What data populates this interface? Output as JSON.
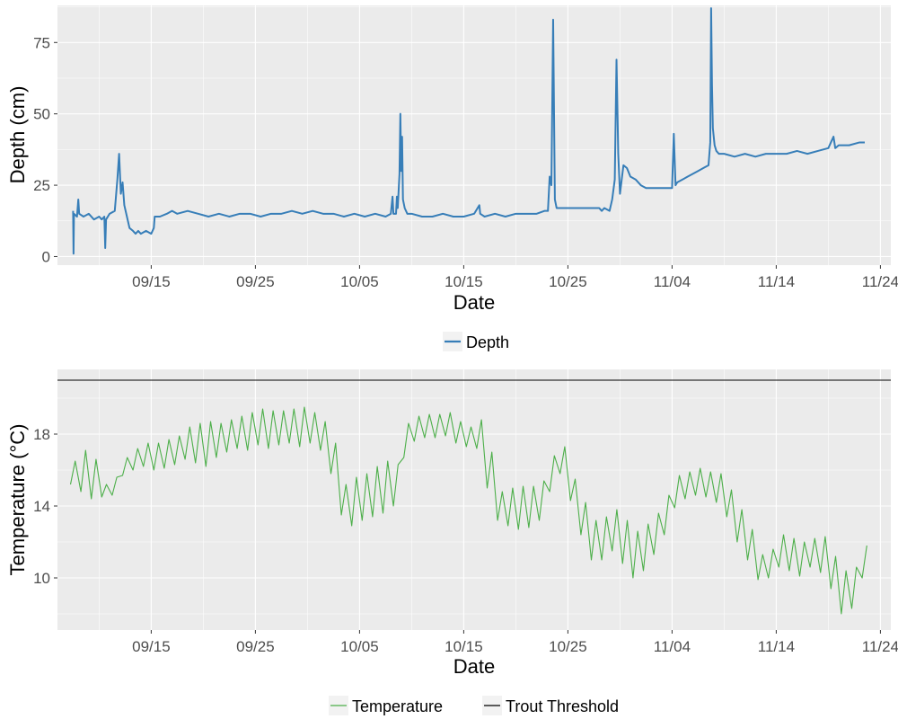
{
  "chart_data": [
    {
      "type": "line",
      "xlabel": "Date",
      "ylabel": "Depth (cm)",
      "x_tick_labels": [
        "09/15",
        "09/25",
        "10/05",
        "10/15",
        "10/25",
        "11/04",
        "11/14",
        "11/24"
      ],
      "x_tick_dates": [
        "09/15",
        "09/25",
        "10/05",
        "10/15",
        "10/25",
        "11/04",
        "11/14",
        "11/24"
      ],
      "xlim": [
        "09/06",
        "11/25"
      ],
      "y_ticks": [
        0,
        25,
        50,
        75
      ],
      "ylim": [
        -3,
        88
      ],
      "grid": true,
      "legend_position": "bottom",
      "series": [
        {
          "name": "Depth",
          "color": "#377eb8",
          "points": [
            [
              "09/07 12:00",
              16
            ],
            [
              "09/07 13:00",
              1
            ],
            [
              "09/07 14:00",
              15
            ],
            [
              "09/07 21:00",
              14
            ],
            [
              "09/08 00:00",
              20
            ],
            [
              "09/08 02:00",
              15
            ],
            [
              "09/08 12:00",
              14
            ],
            [
              "09/09 00:00",
              15
            ],
            [
              "09/09 12:00",
              13
            ],
            [
              "09/10 00:00",
              14
            ],
            [
              "09/10 06:00",
              13
            ],
            [
              "09/10 12:00",
              14
            ],
            [
              "09/10 14:00",
              3
            ],
            [
              "09/10 16:00",
              13
            ],
            [
              "09/11 00:00",
              15
            ],
            [
              "09/11 12:00",
              16
            ],
            [
              "09/11 18:00",
              27
            ],
            [
              "09/11 22:00",
              36
            ],
            [
              "09/12 02:00",
              22
            ],
            [
              "09/12 06:00",
              26
            ],
            [
              "09/12 10:00",
              18
            ],
            [
              "09/12 16:00",
              14
            ],
            [
              "09/12 22:00",
              10
            ],
            [
              "09/13 06:00",
              9
            ],
            [
              "09/13 12:00",
              8
            ],
            [
              "09/13 18:00",
              9
            ],
            [
              "09/14 00:00",
              8
            ],
            [
              "09/14 12:00",
              9
            ],
            [
              "09/15 00:00",
              8
            ],
            [
              "09/15 06:00",
              10
            ],
            [
              "09/15 08:00",
              14
            ],
            [
              "09/15 20:00",
              14
            ],
            [
              "09/16 12:00",
              15
            ],
            [
              "09/17 00:00",
              16
            ],
            [
              "09/17 12:00",
              15
            ],
            [
              "09/18 12:00",
              16
            ],
            [
              "09/19 12:00",
              15
            ],
            [
              "09/20 12:00",
              14
            ],
            [
              "09/21 12:00",
              15
            ],
            [
              "09/22 12:00",
              14
            ],
            [
              "09/23 12:00",
              15
            ],
            [
              "09/24 12:00",
              15
            ],
            [
              "09/25 12:00",
              14
            ],
            [
              "09/26 12:00",
              15
            ],
            [
              "09/27 12:00",
              15
            ],
            [
              "09/28 12:00",
              16
            ],
            [
              "09/29 12:00",
              15
            ],
            [
              "09/30 12:00",
              16
            ],
            [
              "10/01 12:00",
              15
            ],
            [
              "10/02 12:00",
              15
            ],
            [
              "10/03 12:00",
              14
            ],
            [
              "10/04 12:00",
              15
            ],
            [
              "10/05 12:00",
              14
            ],
            [
              "10/06 12:00",
              15
            ],
            [
              "10/07 12:00",
              14
            ],
            [
              "10/08 00:00",
              15
            ],
            [
              "10/08 04:00",
              21
            ],
            [
              "10/08 06:00",
              15
            ],
            [
              "10/08 12:00",
              15
            ],
            [
              "10/08 14:00",
              21
            ],
            [
              "10/08 16:00",
              17
            ],
            [
              "10/08 20:00",
              29
            ],
            [
              "10/08 22:00",
              50
            ],
            [
              "10/09 00:00",
              30
            ],
            [
              "10/09 02:00",
              42
            ],
            [
              "10/09 04:00",
              20
            ],
            [
              "10/09 08:00",
              17
            ],
            [
              "10/09 14:00",
              15
            ],
            [
              "10/10 00:00",
              15
            ],
            [
              "10/11 00:00",
              14
            ],
            [
              "10/12 00:00",
              14
            ],
            [
              "10/13 00:00",
              15
            ],
            [
              "10/14 00:00",
              14
            ],
            [
              "10/15 00:00",
              14
            ],
            [
              "10/16 00:00",
              15
            ],
            [
              "10/16 12:00",
              18
            ],
            [
              "10/16 14:00",
              15
            ],
            [
              "10/17 00:00",
              14
            ],
            [
              "10/18 00:00",
              15
            ],
            [
              "10/19 00:00",
              14
            ],
            [
              "10/20 00:00",
              15
            ],
            [
              "10/21 00:00",
              15
            ],
            [
              "10/22 00:00",
              15
            ],
            [
              "10/22 18:00",
              16
            ],
            [
              "10/23 02:00",
              16
            ],
            [
              "10/23 06:00",
              28
            ],
            [
              "10/23 10:00",
              25
            ],
            [
              "10/23 14:00",
              83
            ],
            [
              "10/23 18:00",
              20
            ],
            [
              "10/23 22:00",
              17
            ],
            [
              "10/24 12:00",
              17
            ],
            [
              "10/25 12:00",
              17
            ],
            [
              "10/26 12:00",
              17
            ],
            [
              "10/27 12:00",
              17
            ],
            [
              "10/28 00:00",
              17
            ],
            [
              "10/28 06:00",
              16
            ],
            [
              "10/28 12:00",
              17
            ],
            [
              "10/29 00:00",
              16
            ],
            [
              "10/29 06:00",
              20
            ],
            [
              "10/29 12:00",
              27
            ],
            [
              "10/29 16:00",
              69
            ],
            [
              "10/29 20:00",
              36
            ],
            [
              "10/30 00:00",
              22
            ],
            [
              "10/30 04:00",
              27
            ],
            [
              "10/30 08:00",
              32
            ],
            [
              "10/30 16:00",
              31
            ],
            [
              "10/31 00:00",
              28
            ],
            [
              "10/31 12:00",
              27
            ],
            [
              "11/01 00:00",
              25
            ],
            [
              "11/01 12:00",
              24
            ],
            [
              "11/02 00:00",
              24
            ],
            [
              "11/02 12:00",
              24
            ],
            [
              "11/03 00:00",
              24
            ],
            [
              "11/03 12:00",
              24
            ],
            [
              "11/04 00:00",
              24
            ],
            [
              "11/04 04:00",
              43
            ],
            [
              "11/04 08:00",
              25
            ],
            [
              "11/04 12:00",
              26
            ],
            [
              "11/05 00:00",
              27
            ],
            [
              "11/05 12:00",
              28
            ],
            [
              "11/06 00:00",
              29
            ],
            [
              "11/06 12:00",
              30
            ],
            [
              "11/07 00:00",
              31
            ],
            [
              "11/07 12:00",
              32
            ],
            [
              "11/07 16:00",
              40
            ],
            [
              "11/07 18:00",
              87
            ],
            [
              "11/07 20:00",
              60
            ],
            [
              "11/07 22:00",
              45
            ],
            [
              "11/08 02:00",
              39
            ],
            [
              "11/08 06:00",
              37
            ],
            [
              "11/08 12:00",
              36
            ],
            [
              "11/09 00:00",
              36
            ],
            [
              "11/10 00:00",
              35
            ],
            [
              "11/11 00:00",
              36
            ],
            [
              "11/12 00:00",
              35
            ],
            [
              "11/13 00:00",
              36
            ],
            [
              "11/14 00:00",
              36
            ],
            [
              "11/15 00:00",
              36
            ],
            [
              "11/16 00:00",
              37
            ],
            [
              "11/17 00:00",
              36
            ],
            [
              "11/18 00:00",
              37
            ],
            [
              "11/19 00:00",
              38
            ],
            [
              "11/19 12:00",
              42
            ],
            [
              "11/19 16:00",
              38
            ],
            [
              "11/20 00:00",
              39
            ],
            [
              "11/21 00:00",
              39
            ],
            [
              "11/22 00:00",
              40
            ],
            [
              "11/22 12:00",
              40
            ]
          ]
        }
      ]
    },
    {
      "type": "line",
      "xlabel": "Date",
      "ylabel": "Temperature (°C)",
      "x_tick_labels": [
        "09/15",
        "09/25",
        "10/05",
        "10/15",
        "10/25",
        "11/04",
        "11/14",
        "11/24"
      ],
      "x_tick_dates": [
        "09/15",
        "09/25",
        "10/05",
        "10/15",
        "10/25",
        "11/04",
        "11/14",
        "11/24"
      ],
      "xlim": [
        "09/06",
        "11/25"
      ],
      "y_ticks": [
        10,
        14,
        18
      ],
      "ylim": [
        7.1,
        21.6
      ],
      "grid": true,
      "legend_position": "bottom",
      "series": [
        {
          "name": "Temperature",
          "color": "#4daf4a",
          "daily": [
            [
              "09/07",
              15.2,
              16.5
            ],
            [
              "09/08",
              14.8,
              17.1
            ],
            [
              "09/09",
              14.4,
              16.6
            ],
            [
              "09/10",
              14.5,
              15.2
            ],
            [
              "09/11",
              14.6,
              15.6
            ],
            [
              "09/12",
              15.7,
              16.7
            ],
            [
              "09/13",
              16.0,
              17.2
            ],
            [
              "09/14",
              16.2,
              17.5
            ],
            [
              "09/15",
              16.0,
              17.5
            ],
            [
              "09/16",
              16.1,
              17.7
            ],
            [
              "09/17",
              16.3,
              17.9
            ],
            [
              "09/18",
              16.6,
              18.4
            ],
            [
              "09/19",
              16.4,
              18.6
            ],
            [
              "09/20",
              16.2,
              18.7
            ],
            [
              "09/21",
              16.7,
              18.6
            ],
            [
              "09/22",
              17.0,
              18.8
            ],
            [
              "09/23",
              17.2,
              19.0
            ],
            [
              "09/24",
              17.1,
              19.2
            ],
            [
              "09/25",
              17.4,
              19.4
            ],
            [
              "09/26",
              17.2,
              19.3
            ],
            [
              "09/27",
              17.4,
              19.3
            ],
            [
              "09/28",
              17.5,
              19.4
            ],
            [
              "09/29",
              17.3,
              19.5
            ],
            [
              "09/30",
              17.5,
              19.2
            ],
            [
              "10/01",
              17.1,
              18.7
            ],
            [
              "10/02",
              15.8,
              17.5
            ],
            [
              "10/03",
              13.5,
              15.2
            ],
            [
              "10/04",
              12.9,
              15.6
            ],
            [
              "10/05",
              13.2,
              15.8
            ],
            [
              "10/06",
              13.4,
              16.2
            ],
            [
              "10/07",
              13.6,
              16.5
            ],
            [
              "10/08",
              14.0,
              16.3
            ],
            [
              "10/09",
              16.7,
              18.6
            ],
            [
              "10/10",
              17.6,
              19.0
            ],
            [
              "10/11",
              17.8,
              19.1
            ],
            [
              "10/12",
              17.8,
              19.1
            ],
            [
              "10/13",
              17.9,
              19.2
            ],
            [
              "10/14",
              17.5,
              18.7
            ],
            [
              "10/15",
              17.3,
              18.4
            ],
            [
              "10/16",
              17.2,
              18.8
            ],
            [
              "10/17",
              15.0,
              17.0
            ],
            [
              "10/18",
              13.2,
              14.8
            ],
            [
              "10/19",
              12.9,
              15.0
            ],
            [
              "10/20",
              12.7,
              15.1
            ],
            [
              "10/21",
              12.8,
              15.1
            ],
            [
              "10/22",
              13.2,
              15.4
            ],
            [
              "10/23",
              14.8,
              16.8
            ],
            [
              "10/24",
              15.8,
              17.3
            ],
            [
              "10/25",
              14.3,
              15.5
            ],
            [
              "10/26",
              12.4,
              14.2
            ],
            [
              "10/27",
              11.0,
              13.2
            ],
            [
              "10/28",
              11.0,
              13.4
            ],
            [
              "10/29",
              11.5,
              13.8
            ],
            [
              "10/30",
              10.8,
              13.2
            ],
            [
              "10/31",
              10.0,
              12.6
            ],
            [
              "11/01",
              10.4,
              13.0
            ],
            [
              "11/02",
              11.3,
              13.6
            ],
            [
              "11/03",
              12.4,
              14.6
            ],
            [
              "11/04",
              13.9,
              15.7
            ],
            [
              "11/05",
              14.4,
              15.9
            ],
            [
              "11/06",
              14.6,
              16.1
            ],
            [
              "11/07",
              14.5,
              15.9
            ],
            [
              "11/08",
              14.2,
              15.8
            ],
            [
              "11/09",
              13.4,
              14.9
            ],
            [
              "11/10",
              12.0,
              13.8
            ],
            [
              "11/11",
              11.0,
              12.7
            ],
            [
              "11/12",
              9.9,
              11.3
            ],
            [
              "11/13",
              10.0,
              11.6
            ],
            [
              "11/14",
              10.6,
              12.4
            ],
            [
              "11/15",
              10.4,
              12.2
            ],
            [
              "11/16",
              10.1,
              12.0
            ],
            [
              "11/17",
              10.6,
              12.2
            ],
            [
              "11/18",
              10.3,
              12.3
            ],
            [
              "11/19",
              9.4,
              11.2
            ],
            [
              "11/20",
              8.0,
              10.4
            ],
            [
              "11/21",
              8.3,
              10.6
            ],
            [
              "11/22",
              10.0,
              11.8
            ]
          ]
        },
        {
          "name": "Trout Threshold",
          "color": "#000000",
          "y": 21.0
        }
      ]
    }
  ]
}
